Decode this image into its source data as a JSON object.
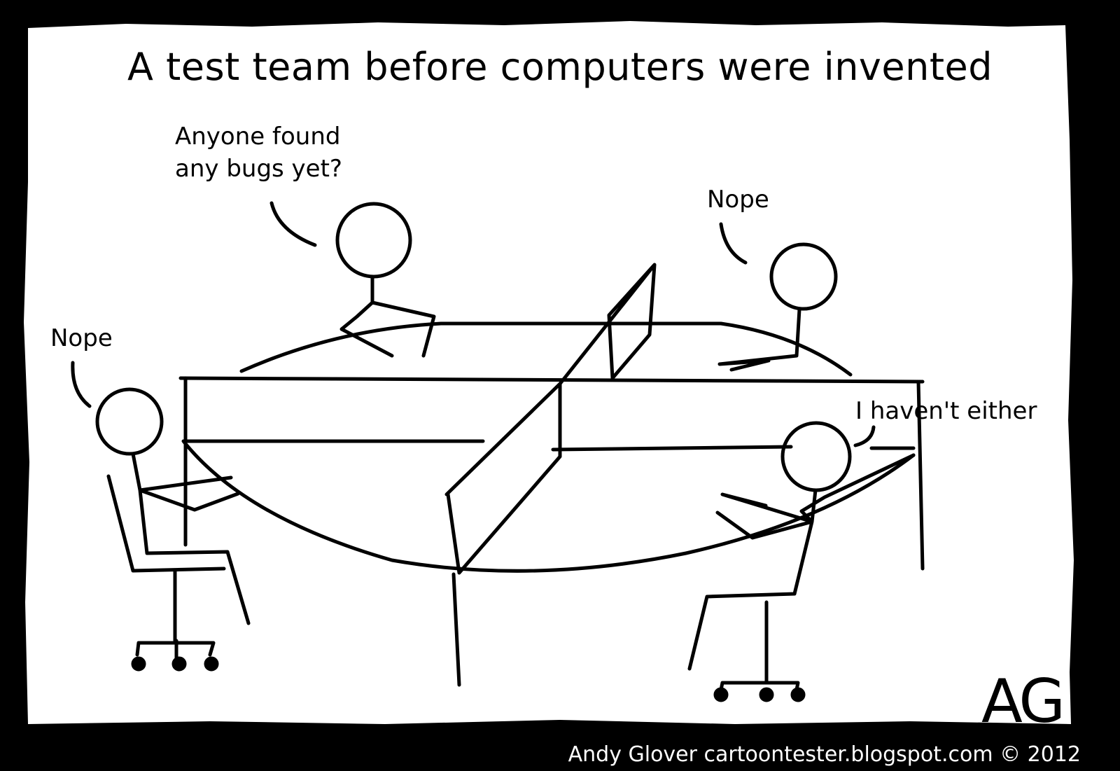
{
  "title": "A test team before computers were invented",
  "speech": {
    "top_line1": "Anyone found",
    "top_line2": "any bugs yet?",
    "right": "Nope",
    "left": "Nope",
    "bottom_right": "I haven't either"
  },
  "signature": "AG",
  "credit": "Andy Glover cartoontester.blogspot.com © 2012",
  "colors": {
    "frame": "#000000",
    "paper": "#ffffff",
    "ink": "#000000",
    "credit_text": "#ffffff"
  }
}
